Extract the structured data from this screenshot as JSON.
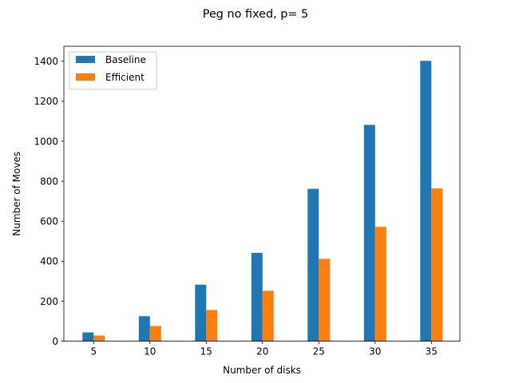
{
  "chart_data": {
    "type": "bar",
    "title": "Peg no fixed, p= 5",
    "xlabel": "Number of disks",
    "ylabel": "Number of Moves",
    "categories": [
      "5",
      "10",
      "15",
      "20",
      "25",
      "30",
      "35"
    ],
    "series": [
      {
        "name": "Baseline",
        "color": "#1f77b4",
        "values": [
          44,
          125,
          283,
          442,
          762,
          1082,
          1402
        ]
      },
      {
        "name": "Efficient",
        "color": "#ff7f0e",
        "values": [
          28,
          76,
          156,
          252,
          412,
          572,
          764
        ]
      }
    ],
    "ylim": [
      0,
      1400
    ],
    "yticks": [
      0,
      200,
      400,
      600,
      800,
      1000,
      1200,
      1400
    ],
    "grid": false,
    "legend": "top-left"
  }
}
